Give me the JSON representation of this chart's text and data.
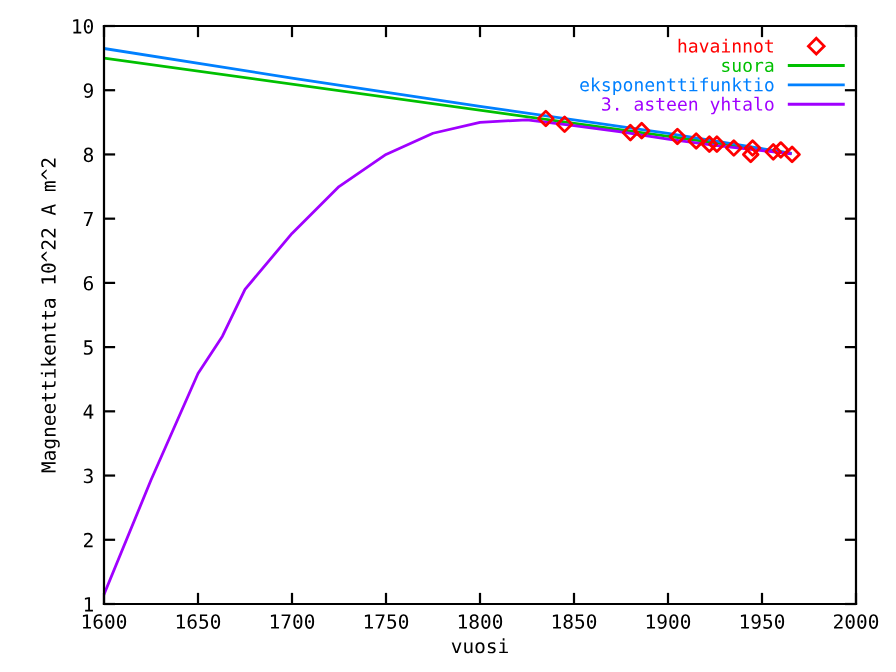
{
  "chart_data": {
    "type": "line",
    "xlabel": "vuosi",
    "ylabel": "Magneettikentta 10^22 A m^2",
    "xlim": [
      1600,
      2000
    ],
    "ylim": [
      1,
      10
    ],
    "xticks": [
      1600,
      1650,
      1700,
      1750,
      1800,
      1850,
      1900,
      1950,
      2000
    ],
    "yticks": [
      1,
      2,
      3,
      4,
      5,
      6,
      7,
      8,
      9,
      10
    ],
    "grid": false,
    "legend": "top right",
    "series": [
      {
        "name": "havainnot",
        "type": "scatter",
        "marker": "diamond",
        "color": "#ff0000",
        "x": [
          1835,
          1845,
          1880,
          1886,
          1905,
          1915,
          1922,
          1926,
          1935,
          1944,
          1945,
          1956,
          1960,
          1966
        ],
        "values": [
          8.56,
          8.47,
          8.34,
          8.37,
          8.28,
          8.21,
          8.16,
          8.16,
          8.1,
          8.0,
          8.1,
          8.04,
          8.07,
          8.0
        ]
      },
      {
        "name": "suora",
        "color": "#00c000",
        "x": [
          1600,
          1965
        ],
        "values": [
          9.5,
          8.02
        ]
      },
      {
        "name": "eksponenttifunktio",
        "color": "#0080ff",
        "x": [
          1600,
          1700,
          1800,
          1900,
          1965
        ],
        "values": [
          9.65,
          9.19,
          8.75,
          8.33,
          8.02
        ]
      },
      {
        "name": "3. asteen yhtalo",
        "color": "#a000ff",
        "x": [
          1600,
          1625,
          1650,
          1663,
          1675,
          1700,
          1725,
          1750,
          1775,
          1800,
          1825,
          1850,
          1875,
          1900,
          1925,
          1950,
          1965
        ],
        "values": [
          1.15,
          2.93,
          4.59,
          5.17,
          5.9,
          6.77,
          7.5,
          8.0,
          8.33,
          8.5,
          8.54,
          8.45,
          8.35,
          8.24,
          8.14,
          8.06,
          8.01
        ]
      }
    ]
  }
}
